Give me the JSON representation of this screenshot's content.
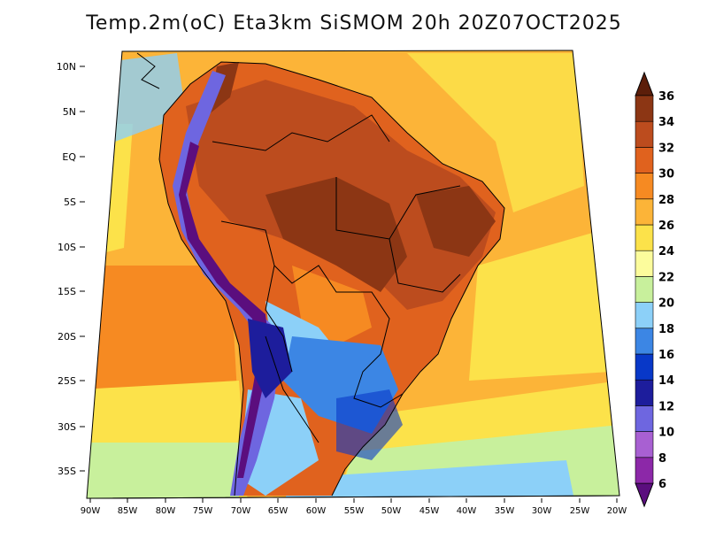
{
  "title": "Temp.2m(oC) Eta3km SiSMOM 20h 20Z07OCT2025",
  "lat_labels": [
    "10N",
    "5N",
    "EQ",
    "5S",
    "10S",
    "15S",
    "20S",
    "25S",
    "30S",
    "35S"
  ],
  "lon_labels": [
    "90W",
    "85W",
    "80W",
    "75W",
    "70W",
    "65W",
    "60W",
    "55W",
    "50W",
    "45W",
    "40W",
    "35W",
    "30W",
    "25W",
    "20W"
  ],
  "colorbar": {
    "labels": [
      "6",
      "8",
      "10",
      "12",
      "14",
      "16",
      "18",
      "20",
      "22",
      "24",
      "26",
      "28",
      "30",
      "32",
      "34",
      "36"
    ],
    "colors": [
      "#5b0e7e",
      "#8c28a8",
      "#a860d2",
      "#6e66e0",
      "#1d1d9c",
      "#0838c8",
      "#3c86e4",
      "#8cd0f8",
      "#c8f09c",
      "#fcfc9c",
      "#fce24a",
      "#fcb438",
      "#f68a22",
      "#e0621e",
      "#bc4c1e",
      "#8c3614",
      "#5c1e0a"
    ]
  },
  "colors": {
    "ocean_north": "#fcb438",
    "ocean_mid": "#f68a22",
    "ocean_south_band": "#fce24a",
    "ocean_cool": "#c8f09c",
    "ocean_cold": "#8cd0f8",
    "land_hot": "#bc4c1e",
    "land_hotter": "#8c3614",
    "land_warm": "#e0621e",
    "andes_cold": "#6e66e0",
    "andes_colder": "#5b0e7e",
    "south_cool": "#3c86e4"
  }
}
